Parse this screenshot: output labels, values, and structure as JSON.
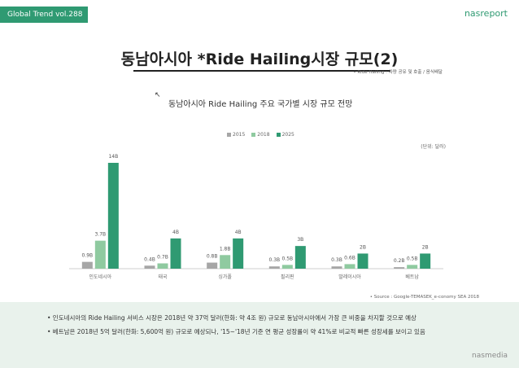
{
  "header": {
    "tag": "Global Trend vol.288",
    "brand": "nasreport"
  },
  "title": "동남아시아 *Ride Hailing시장 규모(2)",
  "note": "• Ride Hailing : 차량 공유 및 호출 / 음식배달",
  "subtitle": "동남아시아 Ride Hailing 주요 국가별 시장 규모 전망",
  "unit": "(단위: 달러)",
  "source": "• Source : Google-TEMASEK_e-conomy SEA 2018",
  "bullets": [
    "• 인도네시아의 Ride Hailing 서비스 시장은 2018년 약 37억 달러(한화: 약 4조 원) 규모로 동남아시아에서 가장 큰 비중을 차지할 것으로 예상",
    "• 베트남은 2018년 5억 달러(한화: 5,600억 원) 규모로 예상되나, '15~'18년 기준 연 평균 성장률이 약 41%로 비교적 빠른 성장세를 보이고 있음"
  ],
  "footer_brand": "nasmedia",
  "colors": {
    "brand": "#2f9a72",
    "s2015": "#a6a6a6",
    "s2018": "#8fcaa0",
    "s2025": "#2f9a72",
    "axis": "#cfcfcf"
  },
  "chart_data": {
    "type": "bar",
    "categories": [
      "인도네시아",
      "태국",
      "싱가폴",
      "필리핀",
      "말레이시아",
      "베트남"
    ],
    "series": [
      {
        "name": "2015",
        "values": [
          0.9,
          0.4,
          0.8,
          0.3,
          0.3,
          0.2
        ],
        "labels": [
          "0.9B",
          "0.4B",
          "0.8B",
          "0.3B",
          "0.3B",
          "0.2B"
        ]
      },
      {
        "name": "2018",
        "values": [
          3.7,
          0.7,
          1.8,
          0.5,
          0.6,
          0.5
        ],
        "labels": [
          "3.7B",
          "0.7B",
          "1.8B",
          "0.5B",
          "0.6B",
          "0.5B"
        ]
      },
      {
        "name": "2025",
        "values": [
          14,
          4,
          4,
          3,
          2,
          2
        ],
        "labels": [
          "14B",
          "4B",
          "4B",
          "3B",
          "2B",
          "2B"
        ]
      }
    ],
    "ylim": [
      0,
      14
    ],
    "legend_position": "top-center",
    "grid": false
  }
}
